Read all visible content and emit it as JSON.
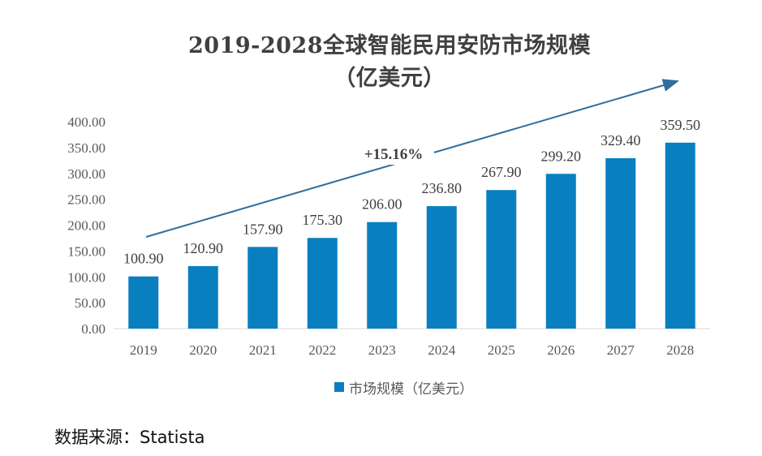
{
  "chart_data": {
    "type": "bar",
    "title": "2019-2028全球智能民用安防市场规模",
    "subtitle": "（亿美元）",
    "categories": [
      "2019",
      "2020",
      "2021",
      "2022",
      "2023",
      "2024",
      "2025",
      "2026",
      "2027",
      "2028"
    ],
    "series": [
      {
        "name": "市场规模（亿美元）",
        "values": [
          100.9,
          120.9,
          157.9,
          175.3,
          206.0,
          236.8,
          267.9,
          299.2,
          329.4,
          359.5
        ],
        "value_labels": [
          "100.90",
          "120.90",
          "157.90",
          "175.30",
          "206.00",
          "236.80",
          "267.90",
          "299.20",
          "329.40",
          "359.50"
        ]
      }
    ],
    "y_ticks": [
      "0.00",
      "50.00",
      "100.00",
      "150.00",
      "200.00",
      "250.00",
      "300.00",
      "350.00",
      "400.00"
    ],
    "ylim": [
      0,
      400
    ],
    "xlabel": "",
    "ylabel": "",
    "grid": false,
    "legend_position": "bottom",
    "annotation": "+15.16%",
    "colors": {
      "bar": "#0a7fbf",
      "arrow": "#2f6e9e",
      "text": "#404040"
    }
  },
  "source": "数据来源：Statista"
}
